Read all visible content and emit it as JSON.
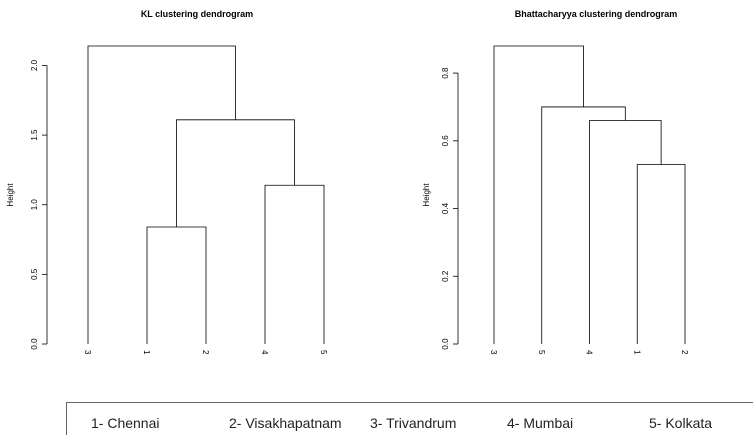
{
  "chart_data": [
    {
      "type": "dendrogram",
      "title": "KL clustering dendrogram",
      "ylabel": "Height",
      "ylim": [
        0,
        2.14
      ],
      "yticks": [
        0.0,
        0.5,
        1.0,
        1.5,
        2.0
      ],
      "ytick_labels": [
        "0.0",
        "0.5",
        "1.0",
        "1.5",
        "2.0"
      ],
      "leaf_order": [
        "3",
        "1",
        "2",
        "4",
        "5"
      ],
      "merges": [
        {
          "left": "leaf:1",
          "right": "leaf:2",
          "height": 0.84
        },
        {
          "left": "leaf:4",
          "right": "leaf:5",
          "height": 1.14
        },
        {
          "left": "node:0",
          "right": "node:1",
          "height": 1.61
        },
        {
          "left": "leaf:3",
          "right": "node:2",
          "height": 2.14
        }
      ]
    },
    {
      "type": "dendrogram",
      "title": "Bhattacharyya clustering dendrogram",
      "ylabel": "Height",
      "ylim": [
        0,
        0.88
      ],
      "yticks": [
        0.0,
        0.2,
        0.4,
        0.6,
        0.8
      ],
      "ytick_labels": [
        "0.0",
        "0.2",
        "0.4",
        "0.6",
        "0.8"
      ],
      "leaf_order": [
        "3",
        "5",
        "4",
        "1",
        "2"
      ],
      "merges": [
        {
          "left": "leaf:1",
          "right": "leaf:2",
          "height": 0.53
        },
        {
          "left": "leaf:4",
          "right": "node:0",
          "height": 0.66
        },
        {
          "left": "leaf:5",
          "right": "node:1",
          "height": 0.7
        },
        {
          "left": "leaf:3",
          "right": "node:2",
          "height": 0.88
        }
      ]
    }
  ],
  "legend": [
    "1- Chennai",
    "2- Visakhapatnam",
    "3- Trivandrum",
    "4- Mumbai",
    "5- Kolkata"
  ]
}
